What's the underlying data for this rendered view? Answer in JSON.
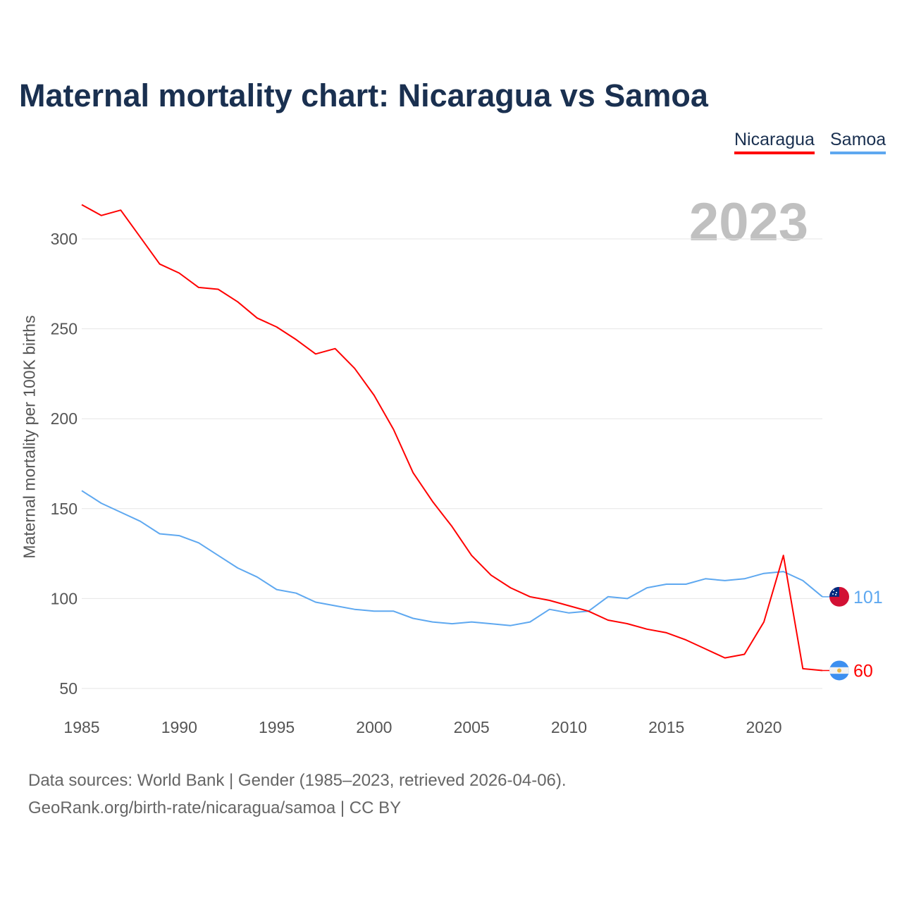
{
  "chart_data": {
    "type": "line",
    "title": "Maternal mortality chart: Nicaragua vs Samoa",
    "xlabel": "",
    "ylabel": "Maternal mortality per 100K births",
    "xlim": [
      1985,
      2023
    ],
    "ylim": [
      40,
      325
    ],
    "yticks": [
      50,
      100,
      150,
      200,
      250,
      300
    ],
    "xticks": [
      1985,
      1990,
      1995,
      2000,
      2005,
      2010,
      2015,
      2020
    ],
    "grid": true,
    "legend_position": "top-right",
    "current_year": "2023",
    "x": [
      1985,
      1986,
      1987,
      1988,
      1989,
      1990,
      1991,
      1992,
      1993,
      1994,
      1995,
      1996,
      1997,
      1998,
      1999,
      2000,
      2001,
      2002,
      2003,
      2004,
      2005,
      2006,
      2007,
      2008,
      2009,
      2010,
      2011,
      2012,
      2013,
      2014,
      2015,
      2016,
      2017,
      2018,
      2019,
      2020,
      2021,
      2022,
      2023
    ],
    "series": [
      {
        "name": "Nicaragua",
        "color": "#ff0000",
        "end_label": "60",
        "flag": "nicaragua-flag",
        "values": [
          319,
          313,
          316,
          301,
          286,
          281,
          273,
          272,
          265,
          256,
          251,
          244,
          236,
          239,
          228,
          213,
          194,
          170,
          154,
          140,
          124,
          113,
          106,
          101,
          99,
          96,
          93,
          88,
          86,
          83,
          81,
          77,
          72,
          67,
          69,
          87,
          124,
          61,
          60
        ]
      },
      {
        "name": "Samoa",
        "color": "#5ea8f0",
        "end_label": "101",
        "flag": "samoa-flag",
        "values": [
          160,
          153,
          148,
          143,
          136,
          135,
          131,
          124,
          117,
          112,
          105,
          103,
          98,
          96,
          94,
          93,
          93,
          89,
          87,
          86,
          87,
          86,
          85,
          87,
          94,
          92,
          93,
          101,
          100,
          106,
          108,
          108,
          111,
          110,
          111,
          114,
          115,
          110,
          101
        ]
      }
    ]
  },
  "source": {
    "line1": "Data sources: World Bank | Gender (1985–2023, retrieved 2026-04-06).",
    "line2": "GeoRank.org/birth-rate/nicaragua/samoa | CC BY"
  }
}
